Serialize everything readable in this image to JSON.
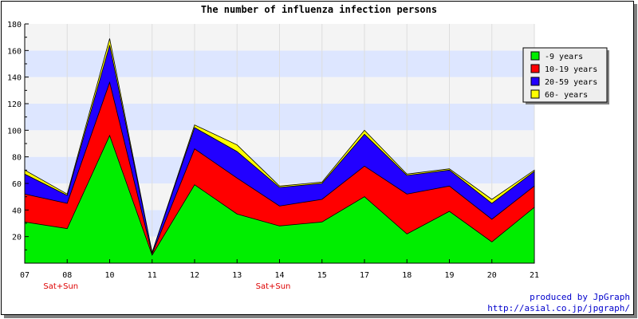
{
  "chart_data": {
    "type": "area",
    "stacked": true,
    "title": "The number of influenza infection persons",
    "xlabel": "",
    "ylabel": "",
    "ylim": [
      0,
      180
    ],
    "yticks": [
      20,
      40,
      60,
      80,
      100,
      120,
      140,
      160,
      180
    ],
    "categories": [
      "07",
      "08",
      "10",
      "11",
      "12",
      "13",
      "14",
      "15",
      "17",
      "18",
      "19",
      "20",
      "21"
    ],
    "weekend_labels": [
      {
        "category": "08",
        "text": "Sat+Sun"
      },
      {
        "category": "14",
        "text": "Sat+Sun"
      }
    ],
    "series": [
      {
        "name": "-9 years",
        "color": "#00ee00",
        "values": [
          31,
          26,
          96,
          6,
          59,
          37,
          28,
          31,
          50,
          22,
          39,
          16,
          42
        ]
      },
      {
        "name": "10-19 years",
        "color": "#ff0000",
        "values": [
          21,
          19,
          40,
          1,
          27,
          27,
          15,
          17,
          23,
          30,
          19,
          17,
          16
        ]
      },
      {
        "name": "20-59 years",
        "color": "#2200ff",
        "values": [
          15,
          6,
          28,
          1,
          16,
          20,
          14,
          12,
          24,
          14,
          12,
          12,
          11
        ]
      },
      {
        "name": "60- years",
        "color": "#ffff00",
        "values": [
          3,
          1,
          5,
          0,
          2,
          5,
          1,
          1,
          3,
          1,
          1,
          3,
          1
        ]
      }
    ],
    "grid": true,
    "legend_position": "top-right"
  },
  "credit": {
    "line1": "produced by JpGraph",
    "line2": "http://asial.co.jp/jpgraph/"
  }
}
